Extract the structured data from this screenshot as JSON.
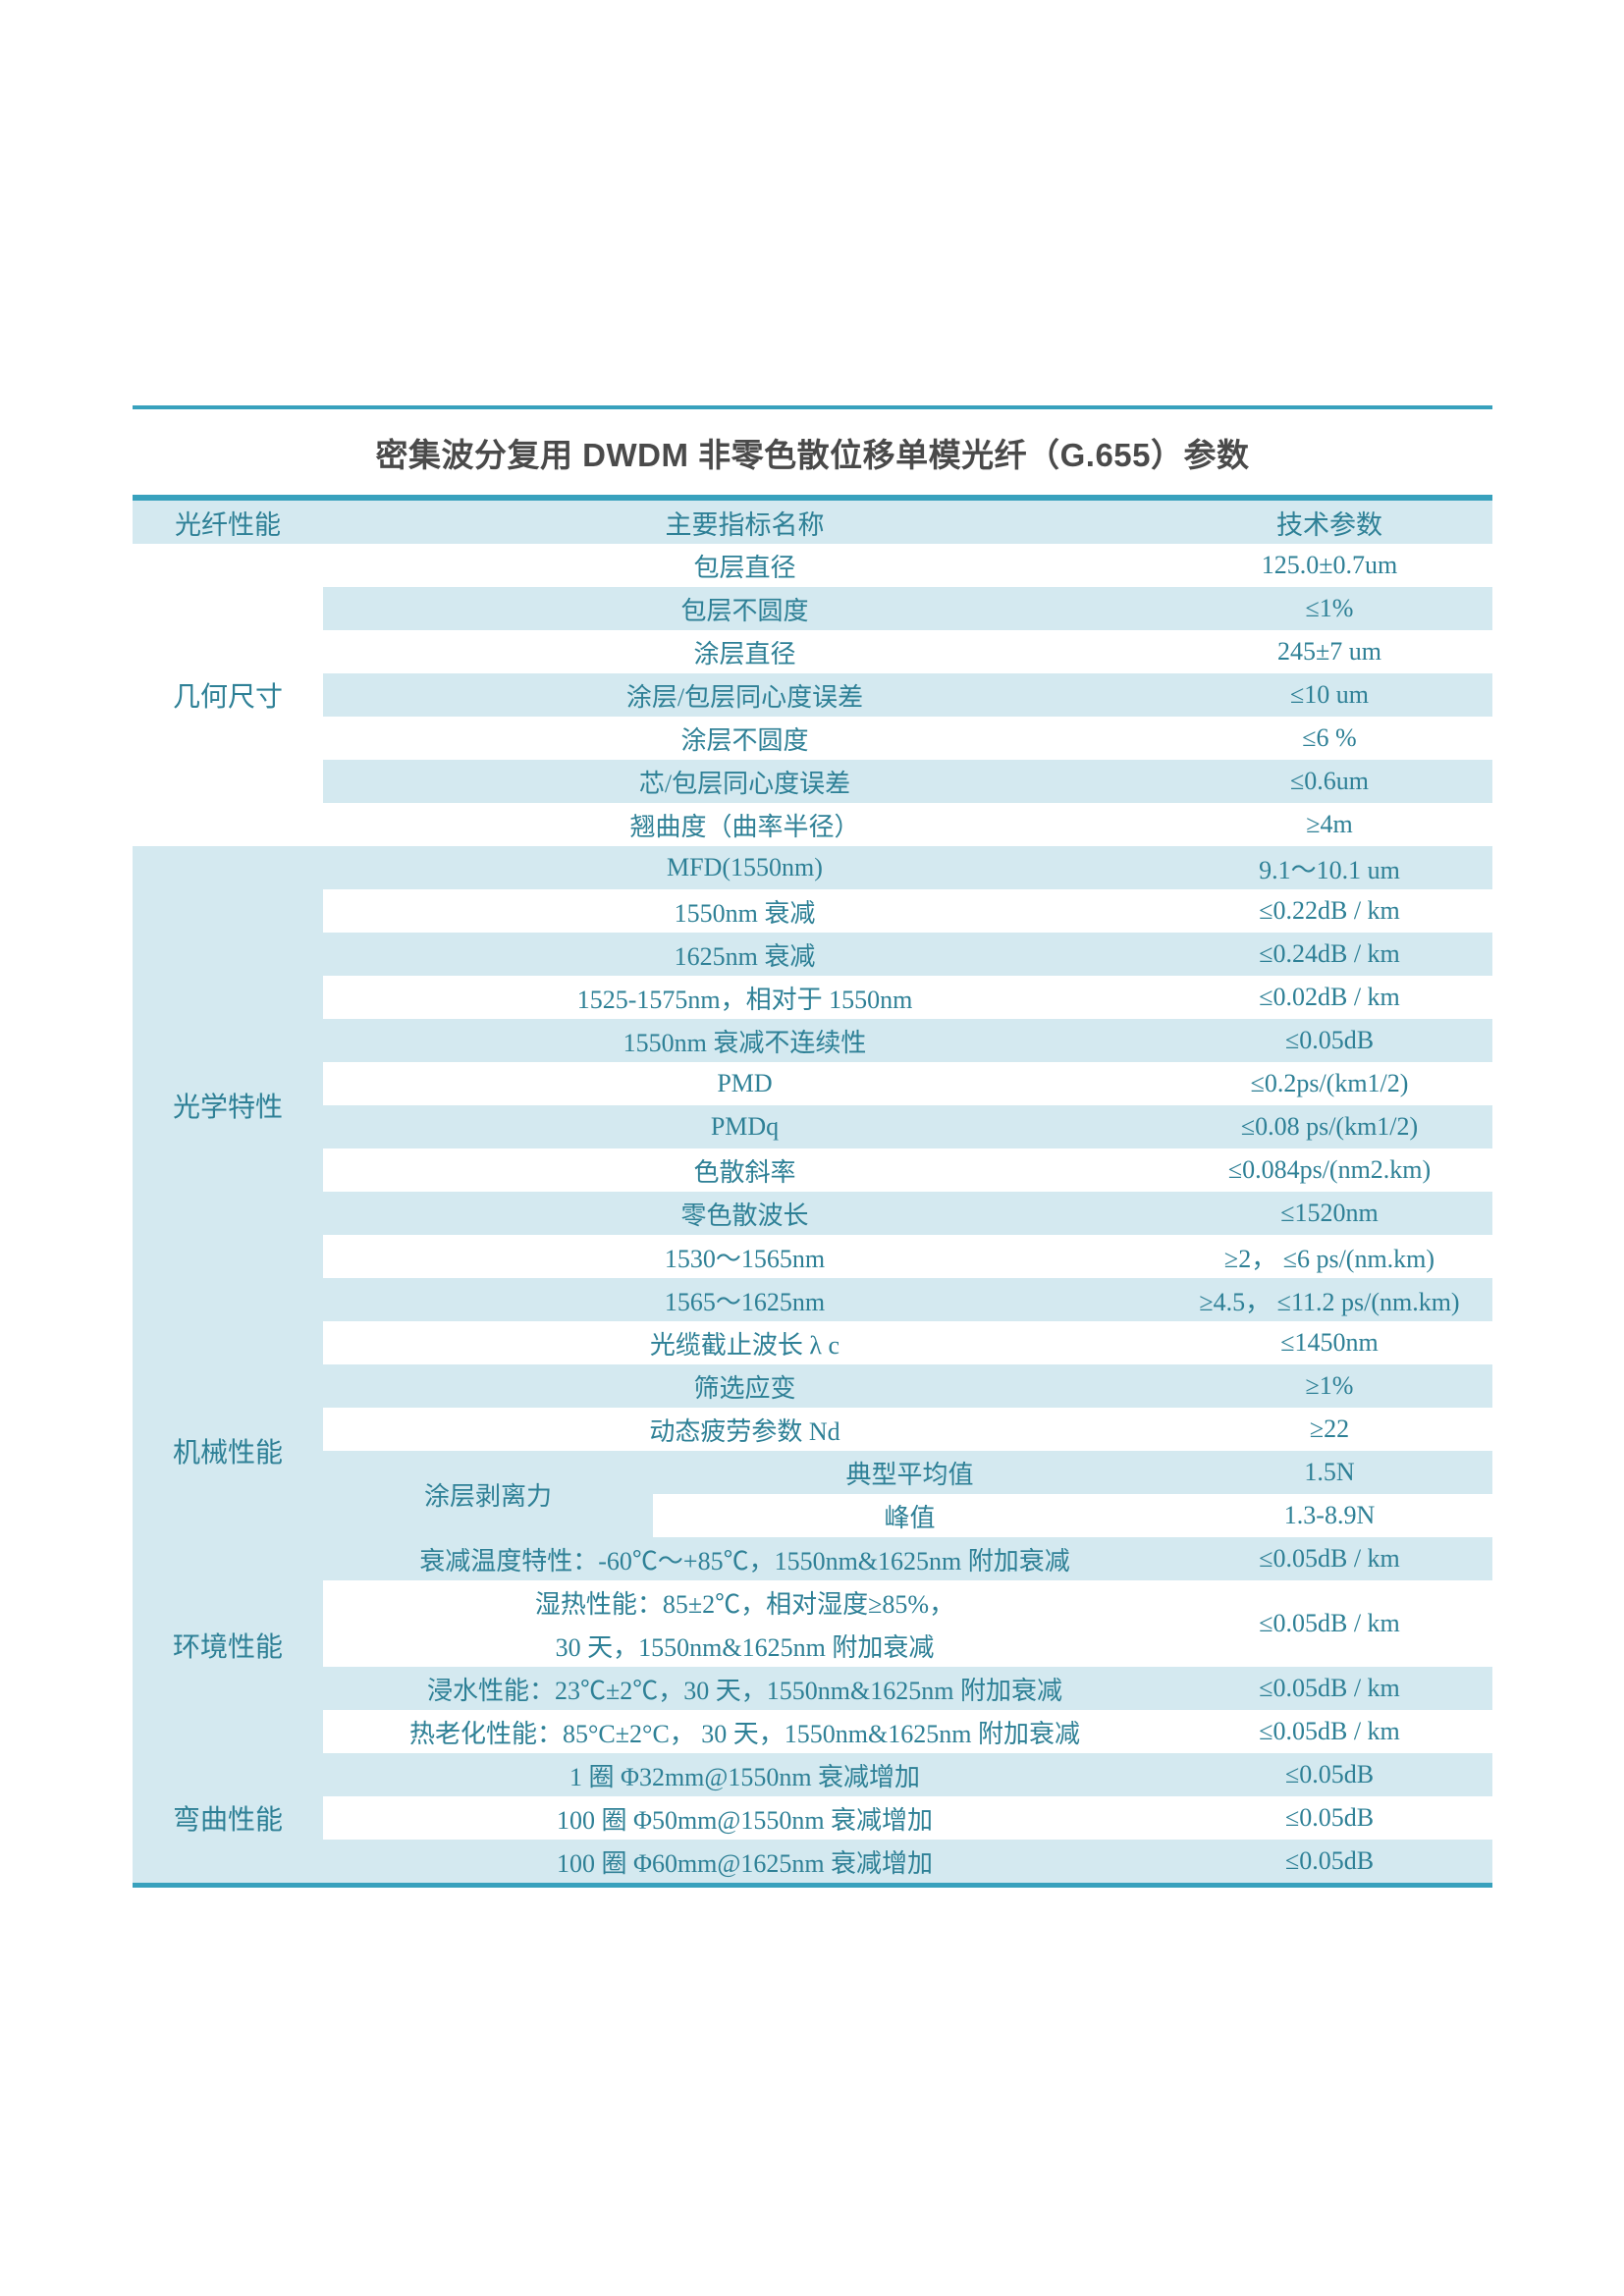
{
  "page": {
    "title": "密集波分复用 DWDM 非零色散位移单模光纤（G.655）参数"
  },
  "table": {
    "headers": [
      "光纤性能",
      "主要指标名称",
      "技术参数"
    ],
    "colors": {
      "accent_teal": "#38A1BD",
      "row_blue": "#D4E9F0",
      "text_teal": "#2E8096",
      "title_gray": "#4A4A4A"
    },
    "sections": [
      {
        "key": "geometry",
        "category": "几何尺寸",
        "rows": [
          {
            "name": "包层直径",
            "value": "125.0±0.7um",
            "shaded": false
          },
          {
            "name": "包层不圆度",
            "value": "≤1%",
            "shaded": true
          },
          {
            "name": "涂层直径",
            "value": "245±7 um",
            "shaded": false
          },
          {
            "name": "涂层/包层同心度误差",
            "value": "≤10 um",
            "shaded": true
          },
          {
            "name": "涂层不圆度",
            "value": "≤6 %",
            "shaded": false
          },
          {
            "name": "芯/包层同心度误差",
            "value": "≤0.6um",
            "shaded": true
          },
          {
            "name": "翘曲度（曲率半径）",
            "value": "≥4m",
            "shaded": false
          }
        ]
      },
      {
        "key": "optical",
        "category": "光学特性",
        "rows": [
          {
            "name": "MFD(1550nm)",
            "value": "9.1～10.1 um",
            "shaded": true
          },
          {
            "name": "1550nm 衰减",
            "value": "≤0.22dB / km",
            "shaded": false
          },
          {
            "name": "1625nm 衰减",
            "value": "≤0.24dB / km",
            "shaded": true
          },
          {
            "name": "1525-1575nm，相对于 1550nm",
            "value": "≤0.02dB / km",
            "shaded": false
          },
          {
            "name": "1550nm 衰减不连续性",
            "value": "≤0.05dB",
            "shaded": true
          },
          {
            "name": "PMD",
            "value": "≤0.2ps/(km1/2)",
            "shaded": false
          },
          {
            "name": "PMDq",
            "value": "≤0.08 ps/(km1/2)",
            "shaded": true
          },
          {
            "name": "色散斜率",
            "value": "≤0.084ps/(nm2.km)",
            "shaded": false
          },
          {
            "name": "零色散波长",
            "value": "≤1520nm",
            "shaded": true
          },
          {
            "name": "1530～1565nm",
            "value": "≥2， ≤6 ps/(nm.km)",
            "shaded": false
          },
          {
            "name": "1565～1625nm",
            "value": "≥4.5， ≤11.2 ps/(nm.km)",
            "shaded": true
          },
          {
            "name": "光缆截止波长 λ c",
            "value": "≤1450nm",
            "shaded": false
          }
        ]
      },
      {
        "key": "mechanical",
        "category": "机械性能",
        "rows": [
          {
            "name": "筛选应变",
            "value": "≥1%",
            "shaded": true
          },
          {
            "name": "动态疲劳参数 Nd",
            "value": "≥22",
            "shaded": false
          },
          {
            "group": "涂层剥离力",
            "name": "典型平均值",
            "value": "1.5N",
            "shaded": true
          },
          {
            "in_group": true,
            "name": "峰值",
            "value": "1.3-8.9N",
            "shaded": false
          }
        ]
      },
      {
        "key": "environmental",
        "category": "环境性能",
        "rows": [
          {
            "name": "衰减温度特性：-60℃～+85℃，1550nm&1625nm 附加衰减",
            "value": "≤0.05dB / km",
            "shaded": true
          },
          {
            "lines": [
              "湿热性能：85±2℃，相对湿度≥85%，",
              "30 天，1550nm&1625nm 附加衰减"
            ],
            "value": "≤0.05dB / km",
            "shaded": false
          },
          {
            "name": "浸水性能：23℃±2℃，30 天，1550nm&1625nm 附加衰减",
            "value": "≤0.05dB / km",
            "shaded": true
          },
          {
            "name": "热老化性能：85°C±2°C， 30 天，1550nm&1625nm 附加衰减",
            "value": "≤0.05dB / km",
            "shaded": false
          }
        ]
      },
      {
        "key": "bending",
        "category": "弯曲性能",
        "rows": [
          {
            "name": "1 圈 Φ32mm@1550nm 衰减增加",
            "value": "≤0.05dB",
            "shaded": true
          },
          {
            "name": "100 圈 Φ50mm@1550nm 衰减增加",
            "value": "≤0.05dB",
            "shaded": false
          },
          {
            "name": "100 圈 Φ60mm@1625nm 衰减增加",
            "value": "≤0.05dB",
            "shaded": true
          }
        ]
      }
    ]
  }
}
